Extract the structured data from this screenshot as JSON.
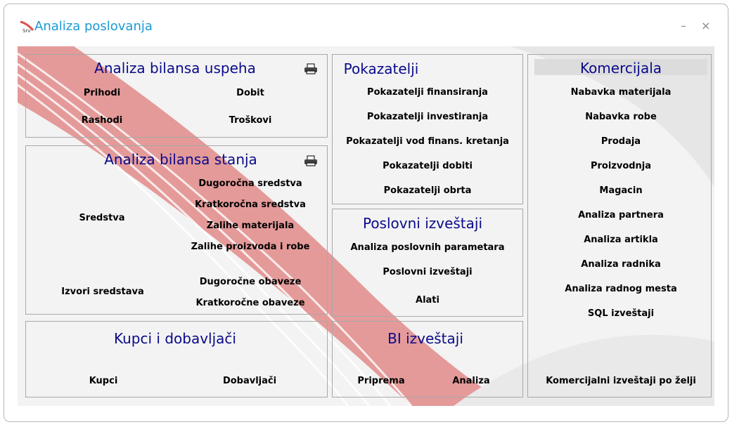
{
  "window": {
    "title": "Analiza poslovanja",
    "minimize_label": "–",
    "close_label": "×"
  },
  "bilans_uspeha": {
    "title": "Analiza bilansa uspeha",
    "items": [
      "Prihodi",
      "Dobit",
      "Rashodi",
      "Troškovi"
    ]
  },
  "bilans_stanja": {
    "title": "Analiza bilansa stanja",
    "items": [
      "Dugoročna sredstva",
      "Kratkoročna sredstva",
      "Zalihe materijala",
      "Zalihe proizvoda i robe",
      "Sredstva",
      "Izvori sredstava",
      "Dugoročne obaveze",
      "Kratkoročne obaveze"
    ]
  },
  "kupci": {
    "title": "Kupci i dobavljači",
    "items": [
      "Kupci",
      "Dobavljači"
    ]
  },
  "pokazatelji": {
    "title": "Pokazatelji",
    "items": [
      "Pokazatelji finansiranja",
      "Pokazatelji investiranja",
      "Pokazatelji vod finans. kretanja",
      "Pokazatelji dobiti",
      "Pokazatelji obrta"
    ]
  },
  "poslovni": {
    "title": "Poslovni izveštaji",
    "items": [
      "Analiza poslovnih parametara",
      "Poslovni izveštaji",
      "Alati"
    ]
  },
  "bi": {
    "title": "BI izveštaji",
    "items": [
      "Priprema",
      "Analiza"
    ]
  },
  "komercijala": {
    "title": "Komercijala",
    "items": [
      "Nabavka materijala",
      "Nabavka robe",
      "Prodaja",
      "Proizvodnja",
      "Magacin",
      "Analiza partnera",
      "Analiza artikla",
      "Analiza radnika",
      "Analiza radnog mesta",
      "SQL izveštaji",
      "Komercijalni izveštaji po želji"
    ]
  },
  "colors": {
    "title": "#1a9ad6",
    "panel_title": "#0a0a8a",
    "swoosh": "#d9534f"
  },
  "icons": [
    "app-logo-icon",
    "printer-icon",
    "minimize-icon",
    "close-icon"
  ]
}
